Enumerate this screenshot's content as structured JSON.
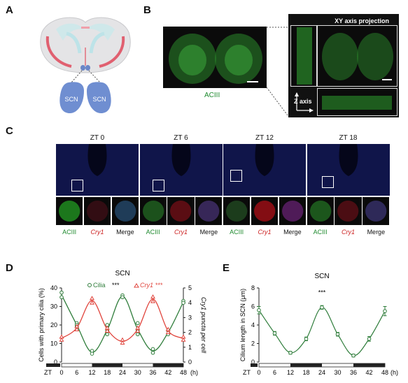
{
  "panels": {
    "A": "A",
    "B": "B",
    "C": "C",
    "D": "D",
    "E": "E"
  },
  "panelA": {
    "scn_left": "SCN",
    "scn_right": "SCN"
  },
  "panelB": {
    "label": "ACIII",
    "projection_title": "XY axis projection",
    "z_axis_label": "Z axis"
  },
  "panelC": {
    "zt_labels": [
      "ZT 0",
      "ZT 6",
      "ZT 12",
      "ZT 18"
    ],
    "channels": [
      "ACIII",
      "Cry1",
      "Merge"
    ],
    "crop_intensity": {
      "aciii": [
        0.8,
        0.35,
        0.1,
        0.4
      ],
      "cry1": [
        0.15,
        0.55,
        0.95,
        0.4
      ]
    }
  },
  "chart_data": [
    {
      "type": "scatter",
      "title": "SCN",
      "xlabel": "(h)",
      "x_prefix": "ZT",
      "ylabel": "Cells with primary cilia (%)",
      "ylabel_right": "Cry1 puncta per cell",
      "xticks": [
        0,
        6,
        12,
        18,
        24,
        30,
        36,
        42,
        48
      ],
      "yticks": [
        0,
        10,
        20,
        30,
        40
      ],
      "yticks_right": [
        0,
        1,
        2,
        3,
        4,
        5
      ],
      "xlim": [
        0,
        48
      ],
      "ylim": [
        0,
        40
      ],
      "ylim_right": [
        0,
        5
      ],
      "dark_phases": [
        [
          12,
          24
        ],
        [
          36,
          48
        ]
      ],
      "legend": {
        "cilia": "Cilia",
        "cry1": "Cry1",
        "stars": "***"
      },
      "series": [
        {
          "name": "Cilia",
          "axis": "left",
          "color": "#2f7d3b",
          "marker": "circle",
          "x": [
            0,
            0,
            6,
            6,
            6,
            12,
            12,
            18,
            18,
            18,
            24,
            24,
            30,
            30,
            30,
            36,
            36,
            42,
            42,
            48,
            48
          ],
          "y": [
            37.5,
            35,
            21,
            20,
            19,
            6,
            4.5,
            20,
            17,
            15,
            36,
            35,
            21,
            17,
            15,
            7,
            5,
            17,
            15,
            33,
            32
          ]
        },
        {
          "name": "Cry1",
          "axis": "right",
          "color": "#e0443c",
          "marker": "triangle",
          "x": [
            0,
            0,
            6,
            6,
            12,
            12,
            18,
            18,
            24,
            24,
            30,
            30,
            36,
            36,
            42,
            42,
            48,
            48
          ],
          "y": [
            1.7,
            1.5,
            2.4,
            2.2,
            4.3,
            4.0,
            2.3,
            2.1,
            1.5,
            1.3,
            2.3,
            2.1,
            4.4,
            4.1,
            2.2,
            2.0,
            1.7,
            1.5
          ]
        }
      ]
    },
    {
      "type": "line",
      "title": "SCN",
      "xlabel": "(h)",
      "x_prefix": "ZT",
      "ylabel": "Cilium length in SCN (μm)",
      "xticks": [
        0,
        6,
        12,
        18,
        24,
        30,
        36,
        42,
        48
      ],
      "yticks": [
        0,
        2,
        4,
        6,
        8
      ],
      "xlim": [
        0,
        48
      ],
      "ylim": [
        0,
        8
      ],
      "dark_phases": [
        [
          12,
          24
        ],
        [
          36,
          48
        ]
      ],
      "annotation": "***",
      "series": [
        {
          "name": "Cilium length",
          "color": "#2f7d3b",
          "x": [
            0,
            6,
            12,
            18,
            24,
            30,
            36,
            42,
            48
          ],
          "y": [
            5.6,
            3.1,
            1.0,
            2.5,
            5.9,
            3.0,
            0.7,
            2.5,
            5.5
          ],
          "err": [
            0.4,
            0.2,
            0.15,
            0.2,
            0.2,
            0.2,
            0.15,
            0.25,
            0.5
          ]
        }
      ]
    }
  ]
}
